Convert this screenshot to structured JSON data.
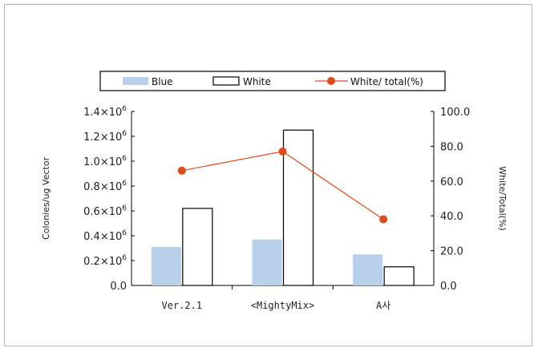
{
  "chart_data": {
    "type": "bar",
    "categories": [
      "Ver.2.1",
      "<MightyMix>",
      "A사"
    ],
    "category_colors": [
      "#222222",
      "#222222",
      "#2a3fb0"
    ],
    "series": [
      {
        "name": "Blue",
        "axis": "left",
        "kind": "bar",
        "color": "#b8d0ea",
        "stroke": "none",
        "values": [
          310000,
          370000,
          250000
        ]
      },
      {
        "name": "White",
        "axis": "left",
        "kind": "bar",
        "color": "#ffffff",
        "stroke": "#000000",
        "values": [
          620000,
          1250000,
          150000
        ]
      },
      {
        "name": "White/ total(%)",
        "axis": "right",
        "kind": "line",
        "color": "#e04a1a",
        "values": [
          66,
          77,
          38
        ]
      }
    ],
    "ylabel": "Colonies/ug Vector",
    "y2label": "White/Total(%)",
    "ylim": [
      0,
      1400000
    ],
    "y2lim": [
      0,
      100
    ],
    "yticks": [
      {
        "mant": "0.0",
        "exp": ""
      },
      {
        "mant": "0.2×10",
        "exp": "6"
      },
      {
        "mant": "0.4×10",
        "exp": "6"
      },
      {
        "mant": "0.6×10",
        "exp": "6"
      },
      {
        "mant": "0.8×10",
        "exp": "6"
      },
      {
        "mant": "1.0×10",
        "exp": "6"
      },
      {
        "mant": "1.2×10",
        "exp": "6"
      },
      {
        "mant": "1.4×10",
        "exp": "6"
      }
    ],
    "y2ticks": [
      "0.0",
      "20.0",
      "40.0",
      "60.0",
      "80.0",
      "100.0"
    ],
    "legend_position": "top",
    "grid": false
  }
}
